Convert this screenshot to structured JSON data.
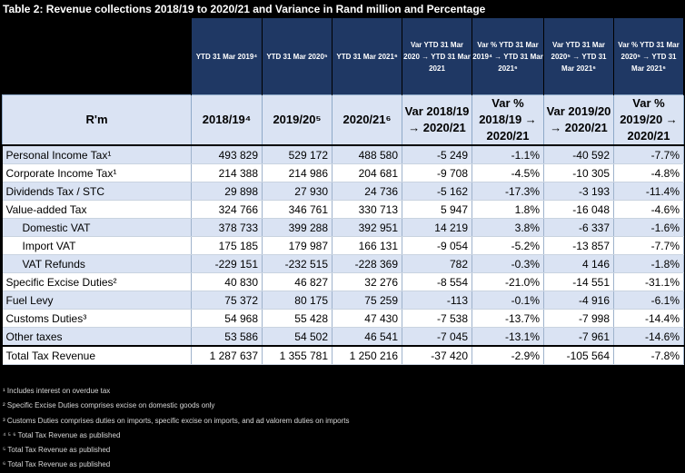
{
  "title": "Table 2: Revenue collections 2018/19 to 2020/21 and Variance in Rand million and Percentage",
  "top_headers": [
    "YTD 31 Mar 2019⁴",
    "YTD 31 Mar 2020⁵",
    "YTD 31 Mar 2021⁶",
    "Var YTD 31 Mar 2020 → YTD 31 Mar 2021",
    "Var % YTD 31 Mar 2019⁴ → YTD 31 Mar 2021⁶",
    "Var YTD 31 Mar 2020⁵ → YTD 31 Mar 2021⁶",
    "Var % YTD 31 Mar 2020⁵ → YTD 31 Mar 2021⁶"
  ],
  "column_headers": {
    "label": "R'm",
    "c1": "2018/19⁴",
    "c2": "2019/20⁵",
    "c3": "2020/21⁶",
    "c4": "Var 2018/19 → 2020/21",
    "c5": "Var % 2018/19 → 2020/21",
    "c6": "Var 2019/20 → 2020/21",
    "c7": "Var % 2019/20 → 2020/21"
  },
  "rows": [
    {
      "label": "Personal Income Tax¹",
      "v": [
        "493 829",
        "529 172",
        "488 580",
        "-5 249",
        "-1.1%",
        "-40 592",
        "-7.7%"
      ]
    },
    {
      "label": "Corporate Income Tax¹",
      "v": [
        "214 388",
        "214 986",
        "204 681",
        "-9 708",
        "-4.5%",
        "-10 305",
        "-4.8%"
      ]
    },
    {
      "label": "Dividends Tax / STC",
      "v": [
        "29 898",
        "27 930",
        "24 736",
        "-5 162",
        "-17.3%",
        "-3 193",
        "-11.4%"
      ]
    },
    {
      "label": "Value-added Tax",
      "v": [
        "324 766",
        "346 761",
        "330 713",
        "5 947",
        "1.8%",
        "-16 048",
        "-4.6%"
      ]
    },
    {
      "label": "Domestic VAT",
      "v": [
        "378 733",
        "399 288",
        "392 951",
        "14 219",
        "3.8%",
        "-6 337",
        "-1.6%"
      ]
    },
    {
      "label": "Import VAT",
      "v": [
        "175 185",
        "179 987",
        "166 131",
        "-9 054",
        "-5.2%",
        "-13 857",
        "-7.7%"
      ]
    },
    {
      "label": "VAT Refunds",
      "v": [
        "-229 151",
        "-232 515",
        "-228 369",
        "782",
        "-0.3%",
        "4 146",
        "-1.8%"
      ]
    },
    {
      "label": "Specific Excise Duties²",
      "v": [
        "40 830",
        "46 827",
        "32 276",
        "-8 554",
        "-21.0%",
        "-14 551",
        "-31.1%"
      ]
    },
    {
      "label": "Fuel Levy",
      "v": [
        "75 372",
        "80 175",
        "75 259",
        "-113",
        "-0.1%",
        "-4 916",
        "-6.1%"
      ]
    },
    {
      "label": "Customs Duties³",
      "v": [
        "54 968",
        "55 428",
        "47 430",
        "-7 538",
        "-13.7%",
        "-7 998",
        "-14.4%"
      ]
    },
    {
      "label": "Other taxes",
      "v": [
        "53 586",
        "54 502",
        "46 541",
        "-7 045",
        "-13.1%",
        "-7 961",
        "-14.6%"
      ]
    }
  ],
  "total": {
    "label": "Total Tax Revenue",
    "v": [
      "1 287 637",
      "1 355 781",
      "1 250 216",
      "-37 420",
      "-2.9%",
      "-105 564",
      "-7.8%"
    ]
  },
  "notes": [
    "¹ Includes interest on overdue tax",
    "² Specific Excise Duties comprises excise on domestic goods only",
    "³ Customs Duties comprises duties on imports, specific excise on imports, and ad valorem duties on imports",
    "⁴ ⁵ ⁶ Total Tax Revenue as published",
    "⁵ Total Tax Revenue as published",
    "⁶ Total Tax Revenue as published"
  ]
}
